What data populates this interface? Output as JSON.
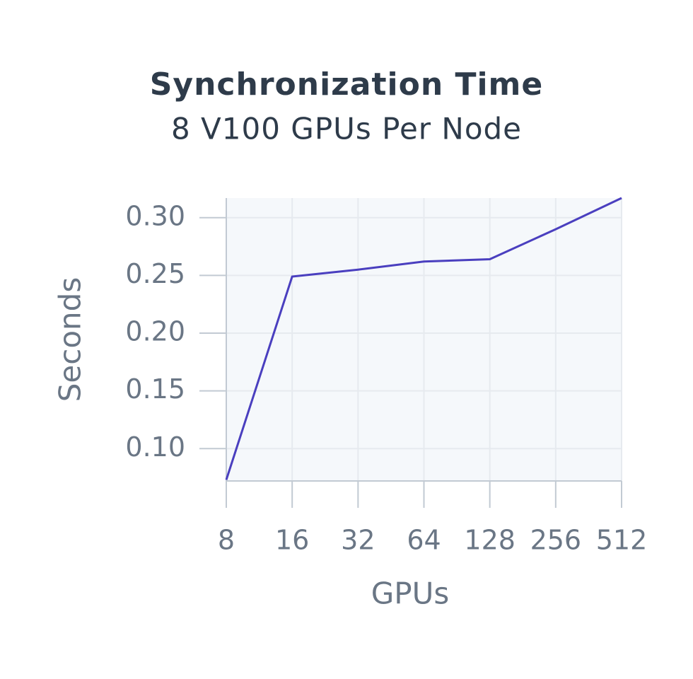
{
  "chart_data": {
    "type": "line",
    "title": "Synchronization Time",
    "subtitle": "8 V100 GPUs Per Node",
    "x_label": "GPUs",
    "y_label": "Seconds",
    "x": [
      8,
      16,
      32,
      64,
      128,
      256,
      512
    ],
    "series": [
      {
        "name": "Synchronization time",
        "color": "#4a3fbf",
        "values": [
          0.073,
          0.249,
          0.255,
          0.262,
          0.264,
          0.29,
          0.317
        ]
      }
    ],
    "x_log_base": 2,
    "xlim": [
      8,
      512
    ],
    "xticks": [
      8,
      16,
      32,
      64,
      128,
      256,
      512
    ],
    "ylim": [
      0.072,
      0.317
    ],
    "yticks": [
      {
        "value": 0.1,
        "label": "0.10"
      },
      {
        "value": 0.15,
        "label": "0.15"
      },
      {
        "value": 0.2,
        "label": "0.20"
      },
      {
        "value": 0.25,
        "label": "0.25"
      },
      {
        "value": 0.3,
        "label": "0.30"
      }
    ],
    "grid": true
  }
}
